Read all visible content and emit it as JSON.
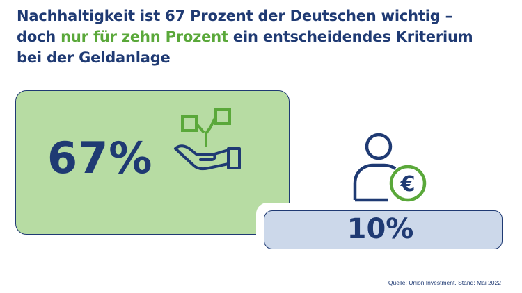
{
  "headline": {
    "line1": "Nachhaltigkeit ist 67 Prozent der Deutschen wichtig –",
    "line2_start": "doch ",
    "line2_highlight": "nur für zehn Prozent",
    "line2_end": " ein entscheidendes Kriterium",
    "line3": "bei der Geldanlage"
  },
  "stats": {
    "sustainability_important": "67%",
    "decisive_criterion": "10%"
  },
  "icons": {
    "plant": "plant-in-hand-icon",
    "person": "person-with-euro-icon",
    "euro_symbol": "€"
  },
  "colors": {
    "navy": "#1f3a73",
    "green": "#5aa83a",
    "light_green": "#b7dca3",
    "light_blue": "#ccd8ea"
  },
  "source": "Quelle: Union Investment, Stand: Mai 2022"
}
